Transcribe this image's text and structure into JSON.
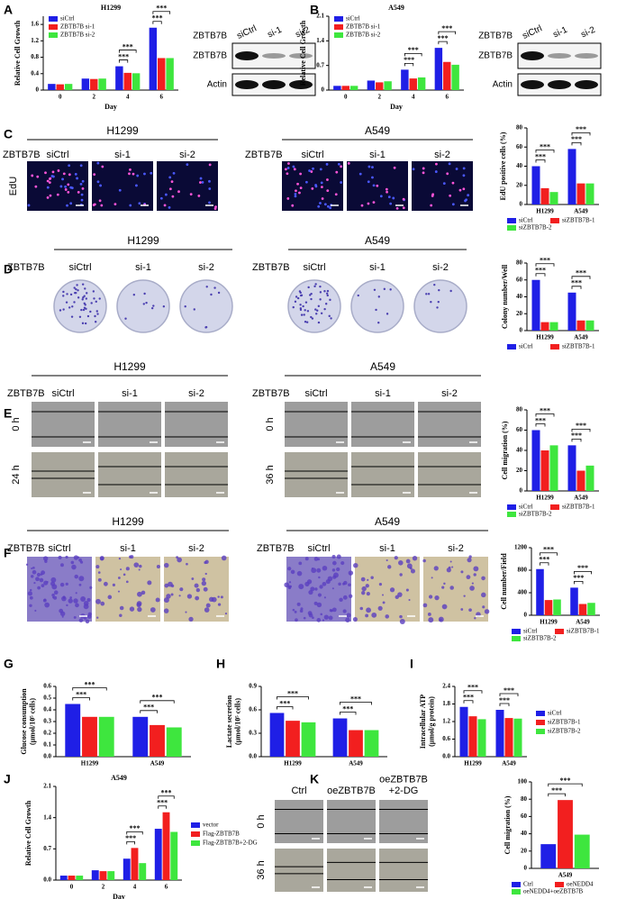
{
  "panel_letters": [
    "A",
    "B",
    "C",
    "D",
    "E",
    "F",
    "G",
    "H",
    "I",
    "J",
    "K"
  ],
  "blots": [
    {
      "label": "ZBTB7B",
      "lanes": [
        "siCtrl",
        "si-1",
        "si-2"
      ],
      "rows": [
        "ZBTB7B",
        "Actin"
      ]
    },
    {
      "label": "ZBTB7B",
      "lanes": [
        "siCtrl",
        "si-1",
        "si-2"
      ],
      "rows": [
        "ZBTB7B",
        "Actin"
      ]
    }
  ],
  "image_panels": [
    {
      "groups": [
        {
          "title": "H1299",
          "label": "ZBTB7B",
          "lanes": [
            "siCtrl",
            "si-1",
            "si-2"
          ],
          "rows": [
            "EdU"
          ]
        },
        {
          "title": "A549",
          "label": "ZBTB7B",
          "lanes": [
            "siCtrl",
            "si-1",
            "si-2"
          ]
        }
      ]
    },
    {
      "groups": [
        {
          "title": "H1299",
          "label": "ZBTB7B",
          "lanes": [
            "siCtrl",
            "si-1",
            "si-2"
          ]
        },
        {
          "title": "A549",
          "label": "ZBTB7B",
          "lanes": [
            "siCtrl",
            "si-1",
            "si-2"
          ]
        }
      ]
    },
    {
      "groups": [
        {
          "title": "H1299",
          "label": "ZBTB7B",
          "lanes": [
            "siCtrl",
            "si-1",
            "si-2"
          ],
          "rows": [
            "0 h",
            "24 h"
          ]
        },
        {
          "title": "A549",
          "label": "ZBTB7B",
          "lanes": [
            "siCtrl",
            "si-1",
            "si-2"
          ],
          "rows": [
            "0 h",
            "36 h"
          ]
        }
      ]
    },
    {
      "groups": [
        {
          "title": "H1299",
          "label": "ZBTB7B",
          "lanes": [
            "siCtrl",
            "si-1",
            "si-2"
          ]
        },
        {
          "title": "A549",
          "label": "ZBTB7B",
          "lanes": [
            "siCtrl",
            "si-1",
            "si-2"
          ]
        }
      ]
    },
    {
      "groups": [
        {
          "lanes": [
            "Ctrl",
            "oeZBTB7B",
            [
              "oeZBTB7B",
              "+2-DG"
            ]
          ],
          "rows": [
            "0 h",
            "36 h"
          ]
        }
      ]
    }
  ],
  "chart_data": [
    {
      "type": "bar",
      "title": "H1299",
      "ylabel": "Relative Cell Growth",
      "xlabel": "Day",
      "legend": "upper left",
      "categories": [
        "0",
        "2",
        "4",
        "6"
      ],
      "series": [
        {
          "name": "siCtrl",
          "color": "#1f1fe6",
          "values": [
            0.15,
            0.28,
            0.58,
            1.52
          ]
        },
        {
          "name": "ZBTB7B si-1",
          "color": "#f21f1f",
          "values": [
            0.14,
            0.27,
            0.42,
            0.78
          ]
        },
        {
          "name": "ZBTB7B si-2",
          "color": "#3ee63e",
          "values": [
            0.15,
            0.28,
            0.41,
            0.78
          ]
        }
      ],
      "ylim": [
        0,
        1.8
      ],
      "yticks": [
        0,
        0.4,
        0.8,
        1.2,
        1.6
      ],
      "annotations": [
        "***",
        "***",
        "***",
        "***"
      ]
    },
    {
      "type": "bar",
      "title": "A549",
      "ylabel": "Relative Cell Growth",
      "xlabel": "Day",
      "legend": "upper left",
      "categories": [
        "0",
        "2",
        "4",
        "6"
      ],
      "series": [
        {
          "name": "siCtrl",
          "color": "#1f1fe6",
          "values": [
            0.12,
            0.27,
            0.58,
            1.2
          ]
        },
        {
          "name": "ZBTB7B si-1",
          "color": "#f21f1f",
          "values": [
            0.12,
            0.22,
            0.33,
            0.8
          ]
        },
        {
          "name": "ZBTB7B si-2",
          "color": "#3ee63e",
          "values": [
            0.12,
            0.25,
            0.36,
            0.72
          ]
        }
      ],
      "ylim": [
        0,
        2.1
      ],
      "yticks": [
        0,
        0.7,
        1.4,
        2.1
      ],
      "annotations": [
        "***",
        "***",
        "***",
        "***"
      ]
    },
    {
      "type": "bar",
      "ylabel": "EdU positive cells (%)",
      "legend": "below",
      "categories": [
        "H1299",
        "A549"
      ],
      "series": [
        {
          "name": "siCtrl",
          "color": "#1f1fe6",
          "values": [
            40,
            58
          ]
        },
        {
          "name": "siZBTB7B-1",
          "color": "#f21f1f",
          "values": [
            17,
            22
          ]
        },
        {
          "name": "siZBTB7B-2",
          "color": "#3ee63e",
          "values": [
            13,
            22
          ]
        }
      ],
      "ylim": [
        0,
        80
      ],
      "yticks": [
        0,
        20,
        40,
        60,
        80
      ],
      "annotations": [
        "***",
        "***",
        "***",
        "***"
      ]
    },
    {
      "type": "bar",
      "ylabel": "Colony number/Well",
      "legend": "below",
      "categories": [
        "H1299",
        "A549"
      ],
      "series": [
        {
          "name": "siCtrl",
          "color": "#1f1fe6",
          "values": [
            60,
            45
          ]
        },
        {
          "name": "siZBTB7B-1",
          "color": "#f21f1f",
          "values": [
            10,
            12
          ]
        },
        {
          "color": "#3ee63e",
          "values": [
            10,
            12
          ]
        }
      ],
      "ylim": [
        0,
        80
      ],
      "yticks": [
        0,
        20,
        40,
        60,
        80
      ],
      "annotations": [
        "***",
        "***",
        "***",
        "***"
      ]
    },
    {
      "type": "bar",
      "ylabel": "Cell migration (%)",
      "legend": "below",
      "categories": [
        "H1299",
        "A549"
      ],
      "series": [
        {
          "name": "siCtrl",
          "color": "#1f1fe6",
          "values": [
            60,
            45
          ]
        },
        {
          "name": "siZBTB7B-1",
          "color": "#f21f1f",
          "values": [
            40,
            20
          ]
        },
        {
          "name": "siZBTB7B-2",
          "color": "#3ee63e",
          "values": [
            45,
            25
          ]
        }
      ],
      "ylim": [
        0,
        80
      ],
      "yticks": [
        0,
        20,
        40,
        60,
        80
      ],
      "annotations": [
        "***",
        "***",
        "***",
        "***"
      ]
    },
    {
      "type": "bar",
      "ylabel": "Cell number/Field",
      "legend": "below",
      "categories": [
        "H1299",
        "A549"
      ],
      "series": [
        {
          "name": "siCtrl",
          "color": "#1f1fe6",
          "values": [
            820,
            490
          ]
        },
        {
          "name": "siZBTB7B-1",
          "color": "#f21f1f",
          "values": [
            270,
            200
          ]
        },
        {
          "name": "siZBTB7B-2",
          "color": "#3ee63e",
          "values": [
            280,
            220
          ]
        }
      ],
      "ylim": [
        0,
        1200
      ],
      "yticks": [
        0,
        400,
        800,
        1200
      ],
      "annotations": [
        "***",
        "***",
        "***",
        "***"
      ]
    },
    {
      "type": "bar",
      "ylabel": [
        "Glucose consumption",
        "(μmol/10⁵ cells)"
      ],
      "categories": [
        "H1299",
        "A549"
      ],
      "series": [
        {
          "color": "#1f1fe6",
          "values": [
            0.45,
            0.34
          ]
        },
        {
          "color": "#f21f1f",
          "values": [
            0.34,
            0.27
          ]
        },
        {
          "color": "#3ee63e",
          "values": [
            0.34,
            0.25
          ]
        }
      ],
      "ylim": [
        0,
        0.6
      ],
      "yticks": [
        {
          "value": 0,
          "label": "0.0"
        },
        0.1,
        0.2,
        0.3,
        0.4,
        0.5,
        0.6
      ],
      "annotations": [
        "***",
        "***",
        "***",
        "***"
      ]
    },
    {
      "type": "bar",
      "ylabel": [
        "Lactate secretion",
        "(μmol/10⁵ cells)"
      ],
      "categories": [
        "H1299",
        "A549"
      ],
      "series": [
        {
          "color": "#1f1fe6",
          "values": [
            0.56,
            0.49
          ]
        },
        {
          "color": "#f21f1f",
          "values": [
            0.46,
            0.34
          ]
        },
        {
          "color": "#3ee63e",
          "values": [
            0.44,
            0.34
          ]
        }
      ],
      "ylim": [
        0,
        0.9
      ],
      "yticks": [
        {
          "value": 0,
          "label": "0.0"
        },
        0.3,
        0.6,
        0.9
      ],
      "annotations": [
        "***",
        "***",
        "***",
        "***"
      ]
    },
    {
      "type": "bar",
      "ylabel": [
        "Intracellular ATP",
        "(μmol/g protein)"
      ],
      "legend": "right",
      "categories": [
        "H1299",
        "A549"
      ],
      "series": [
        {
          "name": "siCtrl",
          "color": "#1f1fe6",
          "values": [
            1.7,
            1.6
          ]
        },
        {
          "name": "siZBTB7B-1",
          "color": "#f21f1f",
          "values": [
            1.38,
            1.32
          ]
        },
        {
          "name": "siZBTB7B-2",
          "color": "#3ee63e",
          "values": [
            1.28,
            1.3
          ]
        }
      ],
      "ylim": [
        0,
        2.4
      ],
      "yticks": [
        {
          "value": 0,
          "label": "0.0"
        },
        0.6,
        1.2,
        1.8,
        2.4
      ],
      "annotations": [
        "***",
        "***",
        "***",
        "***"
      ]
    },
    {
      "type": "bar",
      "title": "A549",
      "ylabel": "Relative Cell Growth",
      "xlabel": "Day",
      "legend": "right",
      "categories": [
        "0",
        "2",
        "4",
        "6"
      ],
      "series": [
        {
          "name": "vector",
          "color": "#1f1fe6",
          "values": [
            0.1,
            0.22,
            0.48,
            1.15
          ]
        },
        {
          "name": "Flag-ZBTB7B",
          "color": "#f21f1f",
          "values": [
            0.1,
            0.2,
            0.72,
            1.52
          ]
        },
        {
          "name": "Flag-ZBTB7B+2-DG",
          "color": "#3ee63e",
          "values": [
            0.1,
            0.2,
            0.38,
            1.08
          ]
        }
      ],
      "ylim": [
        0,
        2.1
      ],
      "yticks": [
        {
          "value": 0,
          "label": "0.0"
        },
        0.7,
        1.4,
        2.1
      ],
      "annotations": [
        "***",
        "***",
        "***",
        "***"
      ]
    },
    {
      "type": "bar",
      "ylabel": "Cell migration (%)",
      "legend": "below",
      "categories": [
        "A549"
      ],
      "series": [
        {
          "name": "Ctrl",
          "color": "#1f1fe6",
          "values": [
            28
          ]
        },
        {
          "name": "oeNEDD4",
          "color": "#f21f1f",
          "values": [
            79
          ]
        },
        {
          "name": "oeNEDD4+oeZBTB7B",
          "color": "#3ee63e",
          "values": [
            39
          ]
        }
      ],
      "ylim": [
        0,
        100
      ],
      "yticks": [
        0,
        20,
        40,
        60,
        80,
        100
      ],
      "annotations": [
        "***",
        "***"
      ]
    }
  ]
}
